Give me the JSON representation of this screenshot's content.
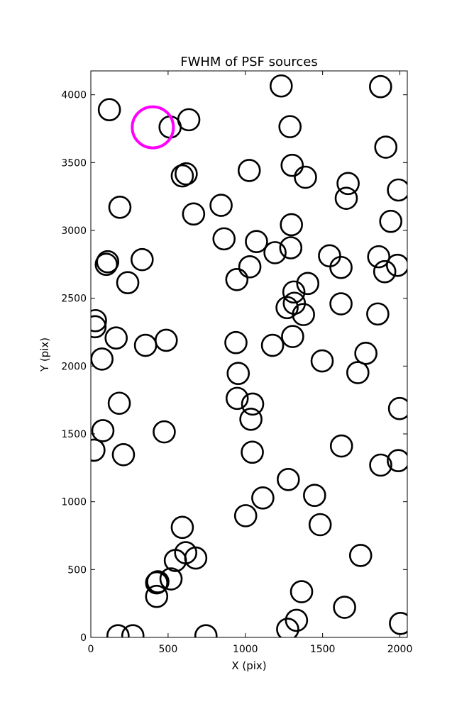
{
  "chart_data": {
    "type": "scatter",
    "title": "FWHM of PSF sources",
    "xlabel": "X (pix)",
    "ylabel": "Y (pix)",
    "xlim": [
      0,
      2048
    ],
    "ylim": [
      0,
      4176
    ],
    "xticks": [
      0,
      500,
      1000,
      1500,
      2000
    ],
    "yticks": [
      0,
      500,
      1000,
      1500,
      2000,
      2500,
      3000,
      3500,
      4000
    ],
    "grid": false,
    "marker": "open-circle",
    "colors": {
      "sources": "#000000",
      "reference": "#ff00ff"
    },
    "series": [
      {
        "role": "sources",
        "points": [
          [
            120,
            3890
          ],
          [
            513,
            3762
          ],
          [
            634,
            3816
          ],
          [
            592,
            3402
          ],
          [
            617,
            3417
          ],
          [
            665,
            3121
          ],
          [
            188,
            3171
          ],
          [
            1232,
            4065
          ],
          [
            1289,
            3765
          ],
          [
            1303,
            3480
          ],
          [
            1389,
            3392
          ],
          [
            1025,
            3442
          ],
          [
            1665,
            3346
          ],
          [
            1653,
            3237
          ],
          [
            1875,
            4060
          ],
          [
            1909,
            3614
          ],
          [
            1991,
            3298
          ],
          [
            1941,
            3067
          ],
          [
            843,
            3185
          ],
          [
            862,
            2938
          ],
          [
            1072,
            2918
          ],
          [
            1298,
            3042
          ],
          [
            1192,
            2836
          ],
          [
            1294,
            2872
          ],
          [
            1029,
            2732
          ],
          [
            945,
            2638
          ],
          [
            1545,
            2813
          ],
          [
            1619,
            2727
          ],
          [
            1863,
            2806
          ],
          [
            1902,
            2696
          ],
          [
            1985,
            2743
          ],
          [
            109,
            2769
          ],
          [
            100,
            2750
          ],
          [
            332,
            2785
          ],
          [
            239,
            2615
          ],
          [
            1404,
            2609
          ],
          [
            1314,
            2546
          ],
          [
            1317,
            2463
          ],
          [
            1270,
            2431
          ],
          [
            1376,
            2380
          ],
          [
            1619,
            2459
          ],
          [
            1857,
            2384
          ],
          [
            30,
            2335
          ],
          [
            27,
            2290
          ],
          [
            164,
            2207
          ],
          [
            354,
            2153
          ],
          [
            488,
            2190
          ],
          [
            72,
            2052
          ],
          [
            939,
            2173
          ],
          [
            1176,
            2153
          ],
          [
            1306,
            2218
          ],
          [
            1497,
            2038
          ],
          [
            1780,
            2094
          ],
          [
            1728,
            1952
          ],
          [
            954,
            1946
          ],
          [
            947,
            1762
          ],
          [
            1047,
            1720
          ],
          [
            1036,
            1608
          ],
          [
            184,
            1726
          ],
          [
            78,
            1524
          ],
          [
            20,
            1380
          ],
          [
            211,
            1347
          ],
          [
            475,
            1515
          ],
          [
            1045,
            1365
          ],
          [
            1622,
            1411
          ],
          [
            1998,
            1687
          ],
          [
            1990,
            1303
          ],
          [
            1876,
            1270
          ],
          [
            1278,
            1164
          ],
          [
            1448,
            1047
          ],
          [
            1113,
            1028
          ],
          [
            1002,
            897
          ],
          [
            1484,
            831
          ],
          [
            592,
            811
          ],
          [
            614,
            624
          ],
          [
            547,
            567
          ],
          [
            679,
            585
          ],
          [
            434,
            410
          ],
          [
            426,
            402
          ],
          [
            519,
            431
          ],
          [
            426,
            302
          ],
          [
            1364,
            337
          ],
          [
            1746,
            604
          ],
          [
            1642,
            222
          ],
          [
            1331,
            126
          ],
          [
            1274,
            60
          ],
          [
            2004,
            103
          ],
          [
            176,
            12
          ],
          [
            272,
            12
          ],
          [
            745,
            12
          ]
        ]
      },
      {
        "role": "reference",
        "points": [
          [
            401,
            3760
          ]
        ]
      }
    ]
  }
}
